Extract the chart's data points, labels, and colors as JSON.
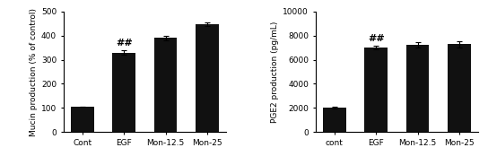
{
  "left": {
    "categories": [
      "Cont",
      "EGF",
      "Mon-12.5",
      "Mon-25"
    ],
    "values": [
      105,
      330,
      390,
      447
    ],
    "errors": [
      5,
      10,
      8,
      8
    ],
    "ylabel": "Mucin production (% of control)",
    "ylim": [
      0,
      500
    ],
    "yticks": [
      0,
      100,
      200,
      300,
      400,
      500
    ],
    "bar_color": "#111111",
    "annotation": "##",
    "annotation_bar": 1
  },
  "right": {
    "categories": [
      "cont",
      "EGF",
      "Mon-12.5",
      "Mon-25"
    ],
    "values": [
      2000,
      7000,
      7250,
      7300
    ],
    "errors": [
      80,
      130,
      200,
      250
    ],
    "ylabel": "PGE2 production (pg/mL)",
    "ylim": [
      0,
      10000
    ],
    "yticks": [
      0,
      2000,
      4000,
      6000,
      8000,
      10000
    ],
    "bar_color": "#111111",
    "annotation": "##",
    "annotation_bar": 1
  },
  "background_color": "#ffffff",
  "fontsize_label": 6.5,
  "fontsize_tick": 6.5,
  "fontsize_annot": 8
}
